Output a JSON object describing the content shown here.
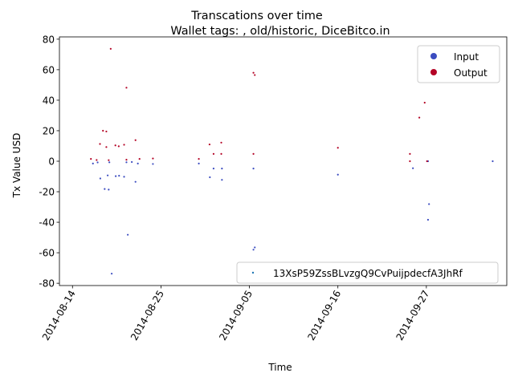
{
  "chart_data": {
    "type": "scatter",
    "title": "Transcations over time",
    "subtitle": "Wallet tags: , old/historic, DiceBitco.in",
    "xlabel": "Time",
    "ylabel": "Tx Value USD",
    "x_ticks": [
      "2014-08-14",
      "2014-08-25",
      "2014-09-05",
      "2014-09-16",
      "2014-09-27"
    ],
    "y_ticks": [
      -80,
      -60,
      -40,
      -20,
      0,
      20,
      40,
      60,
      80
    ],
    "xlim": [
      "2014-08-12T09:00",
      "2014-10-07T00:00"
    ],
    "ylim": [
      -81.5,
      81.5
    ],
    "grid": false,
    "legend_position": "top-right",
    "legend": [
      {
        "label": "Input",
        "color": "#3b4cc0"
      },
      {
        "label": "Output",
        "color": "#b40426"
      }
    ],
    "series_legend": {
      "label": "13XsP59ZssBLvzgQ9CvPuijpdecfA3JhRf",
      "color": "#1f77b4",
      "position": "lower-right"
    },
    "series": [
      {
        "name": "Input",
        "color": "#3b4cc0",
        "points": [
          {
            "x": "2014-08-16T13:00",
            "y": -1.5
          },
          {
            "x": "2014-08-17T03:00",
            "y": -0.8
          },
          {
            "x": "2014-08-17T11:00",
            "y": -11.3
          },
          {
            "x": "2014-08-18T00:00",
            "y": -18.2
          },
          {
            "x": "2014-08-18T12:00",
            "y": -18.6
          },
          {
            "x": "2014-08-18T09:00",
            "y": -9.3
          },
          {
            "x": "2014-08-18T14:00",
            "y": -0.7
          },
          {
            "x": "2014-08-18T21:00",
            "y": -73.7
          },
          {
            "x": "2014-08-19T09:00",
            "y": -9.8
          },
          {
            "x": "2014-08-19T19:00",
            "y": -9.5
          },
          {
            "x": "2014-08-20T10:00",
            "y": -10.2
          },
          {
            "x": "2014-08-20T17:00",
            "y": -0.7
          },
          {
            "x": "2014-08-20T21:00",
            "y": -48.2
          },
          {
            "x": "2014-08-21T09:00",
            "y": -0.5
          },
          {
            "x": "2014-08-21T20:00",
            "y": -13.5
          },
          {
            "x": "2014-08-22T03:00",
            "y": -1.5
          },
          {
            "x": "2014-08-24T00:00",
            "y": -1.8
          },
          {
            "x": "2014-08-29T17:00",
            "y": -1.5
          },
          {
            "x": "2014-08-31T02:00",
            "y": -10.5
          },
          {
            "x": "2014-08-31T13:00",
            "y": -4.8
          },
          {
            "x": "2014-09-01T14:00",
            "y": -4.8
          },
          {
            "x": "2014-09-01T14:00",
            "y": -12.2
          },
          {
            "x": "2014-09-05T12:00",
            "y": -4.8
          },
          {
            "x": "2014-09-05T12:00",
            "y": -58.0
          },
          {
            "x": "2014-09-05T16:00",
            "y": -56.5
          },
          {
            "x": "2014-09-16T00:00",
            "y": -8.8
          },
          {
            "x": "2014-09-25T08:00",
            "y": -4.6
          },
          {
            "x": "2014-09-27T05:00",
            "y": 0.0
          },
          {
            "x": "2014-09-27T08:00",
            "y": -28.1
          },
          {
            "x": "2014-09-27T05:00",
            "y": -38.4
          },
          {
            "x": "2014-10-05T06:00",
            "y": 0.0
          }
        ]
      },
      {
        "name": "Output",
        "color": "#b40426",
        "points": [
          {
            "x": "2014-08-16T07:00",
            "y": 1.5
          },
          {
            "x": "2014-08-17T00:00",
            "y": 0.8
          },
          {
            "x": "2014-08-17T10:00",
            "y": 11.3
          },
          {
            "x": "2014-08-17T19:00",
            "y": 20.0
          },
          {
            "x": "2014-08-18T05:00",
            "y": 19.5
          },
          {
            "x": "2014-08-18T05:00",
            "y": 9.3
          },
          {
            "x": "2014-08-18T12:00",
            "y": 0.7
          },
          {
            "x": "2014-08-18T18:00",
            "y": 73.7
          },
          {
            "x": "2014-08-19T08:00",
            "y": 10.4
          },
          {
            "x": "2014-08-19T18:00",
            "y": 9.8
          },
          {
            "x": "2014-08-20T10:00",
            "y": 10.8
          },
          {
            "x": "2014-08-20T17:00",
            "y": 1.0
          },
          {
            "x": "2014-08-20T17:00",
            "y": 48.2
          },
          {
            "x": "2014-08-21T20:00",
            "y": 13.8
          },
          {
            "x": "2014-08-22T08:00",
            "y": 1.5
          },
          {
            "x": "2014-08-24T00:00",
            "y": 1.8
          },
          {
            "x": "2014-08-29T17:00",
            "y": 1.5
          },
          {
            "x": "2014-08-31T01:00",
            "y": 11.0
          },
          {
            "x": "2014-08-31T13:00",
            "y": 4.8
          },
          {
            "x": "2014-09-01T12:00",
            "y": 12.2
          },
          {
            "x": "2014-09-01T12:00",
            "y": 4.8
          },
          {
            "x": "2014-09-05T12:00",
            "y": 4.8
          },
          {
            "x": "2014-09-05T12:00",
            "y": 58.0
          },
          {
            "x": "2014-09-05T16:00",
            "y": 56.5
          },
          {
            "x": "2014-09-16T00:00",
            "y": 8.8
          },
          {
            "x": "2014-09-24T23:00",
            "y": 4.8
          },
          {
            "x": "2014-09-24T23:00",
            "y": 0.0
          },
          {
            "x": "2014-09-26T03:00",
            "y": 28.6
          },
          {
            "x": "2014-09-26T19:00",
            "y": 38.4
          },
          {
            "x": "2014-09-27T02:00",
            "y": 0.0
          }
        ]
      }
    ]
  }
}
